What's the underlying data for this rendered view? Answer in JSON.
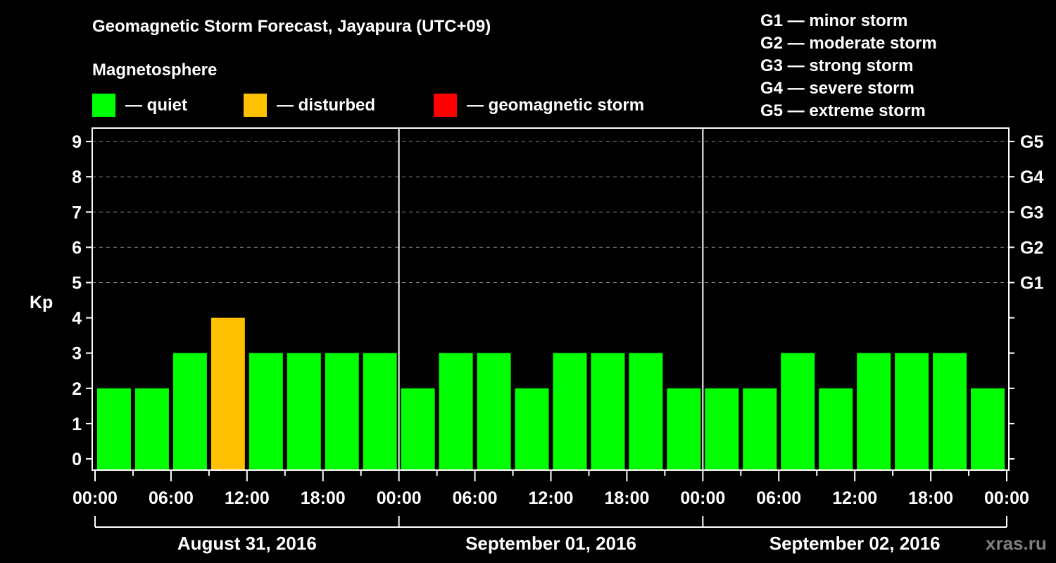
{
  "header": {
    "title": "Geomagnetic Storm Forecast, Jayapura (UTC+09)",
    "subtitle": "Magnetosphere"
  },
  "legend": [
    {
      "label": "— quiet",
      "color": "#00ff00"
    },
    {
      "label": "— disturbed",
      "color": "#ffc000"
    },
    {
      "label": "— geomagnetic storm",
      "color": "#ff0000"
    }
  ],
  "storm_scale": [
    "G1 — minor storm",
    "G2 — moderate storm",
    "G3 — strong storm",
    "G4 — severe storm",
    "G5 — extreme storm"
  ],
  "watermark": "xras.ru",
  "chart_data": {
    "type": "bar",
    "title": "Geomagnetic Storm Forecast, Jayapura (UTC+09)",
    "ylabel": "Kp",
    "xlabel": "",
    "ylim": [
      0,
      9
    ],
    "yticks": [
      0,
      1,
      2,
      3,
      4,
      5,
      6,
      7,
      8,
      9
    ],
    "right_axis_labels": [
      {
        "kp": 5,
        "label": "G1"
      },
      {
        "kp": 6,
        "label": "G2"
      },
      {
        "kp": 7,
        "label": "G3"
      },
      {
        "kp": 8,
        "label": "G4"
      },
      {
        "kp": 9,
        "label": "G5"
      }
    ],
    "grid": "dashed horizontal at Kp 5-9",
    "xtick_labels": [
      "00:00",
      "06:00",
      "12:00",
      "18:00",
      "00:00",
      "06:00",
      "12:00",
      "18:00",
      "00:00",
      "06:00",
      "12:00",
      "18:00",
      "00:00"
    ],
    "days": [
      "August 31, 2016",
      "September 01, 2016",
      "September 02, 2016"
    ],
    "interval_hours": 3,
    "categories": [
      "Aug31 00-03",
      "Aug31 03-06",
      "Aug31 06-09",
      "Aug31 09-12",
      "Aug31 12-15",
      "Aug31 15-18",
      "Aug31 18-21",
      "Aug31 21-24",
      "Sep01 00-03",
      "Sep01 03-06",
      "Sep01 06-09",
      "Sep01 09-12",
      "Sep01 12-15",
      "Sep01 15-18",
      "Sep01 18-21",
      "Sep01 21-24",
      "Sep02 00-03",
      "Sep02 03-06",
      "Sep02 06-09",
      "Sep02 09-12",
      "Sep02 12-15",
      "Sep02 15-18",
      "Sep02 18-21",
      "Sep02 21-24"
    ],
    "values": [
      2,
      2,
      3,
      4,
      3,
      3,
      3,
      3,
      2,
      3,
      3,
      2,
      3,
      3,
      3,
      2,
      2,
      2,
      3,
      2,
      3,
      3,
      3,
      2
    ],
    "status": [
      "quiet",
      "quiet",
      "quiet",
      "disturbed",
      "quiet",
      "quiet",
      "quiet",
      "quiet",
      "quiet",
      "quiet",
      "quiet",
      "quiet",
      "quiet",
      "quiet",
      "quiet",
      "quiet",
      "quiet",
      "quiet",
      "quiet",
      "quiet",
      "quiet",
      "quiet",
      "quiet",
      "quiet"
    ],
    "legend_position": "top"
  }
}
